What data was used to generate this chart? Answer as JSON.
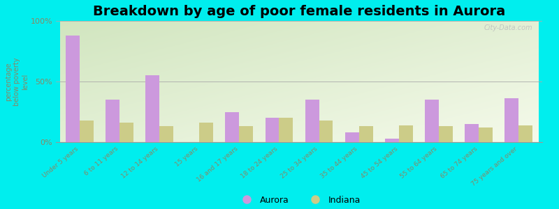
{
  "title": "Breakdown by age of poor female residents in Aurora",
  "ylabel": "percentage\nbelow poverty\nlevel",
  "categories": [
    "Under 5 years",
    "6 to 11 years",
    "12 to 14 years",
    "15 years",
    "16 and 17 years",
    "18 to 24 years",
    "25 to 34 years",
    "35 to 44 years",
    "45 to 54 years",
    "55 to 64 years",
    "65 to 74 years",
    "75 years and over"
  ],
  "aurora_values": [
    88,
    35,
    55,
    0,
    25,
    20,
    35,
    8,
    3,
    35,
    15,
    36
  ],
  "indiana_values": [
    18,
    16,
    13,
    16,
    13,
    20,
    18,
    13,
    14,
    13,
    12,
    14
  ],
  "aurora_color": "#cc99dd",
  "indiana_color": "#cccc88",
  "background_color": "#00eeee",
  "ylim": [
    0,
    100
  ],
  "yticks": [
    0,
    50,
    100
  ],
  "ytick_labels": [
    "0%",
    "50%",
    "100%"
  ],
  "bar_width": 0.35,
  "title_fontsize": 14,
  "legend_labels": [
    "Aurora",
    "Indiana"
  ],
  "watermark": "City-Data.com",
  "tick_color": "#888866",
  "label_color": "#888866"
}
